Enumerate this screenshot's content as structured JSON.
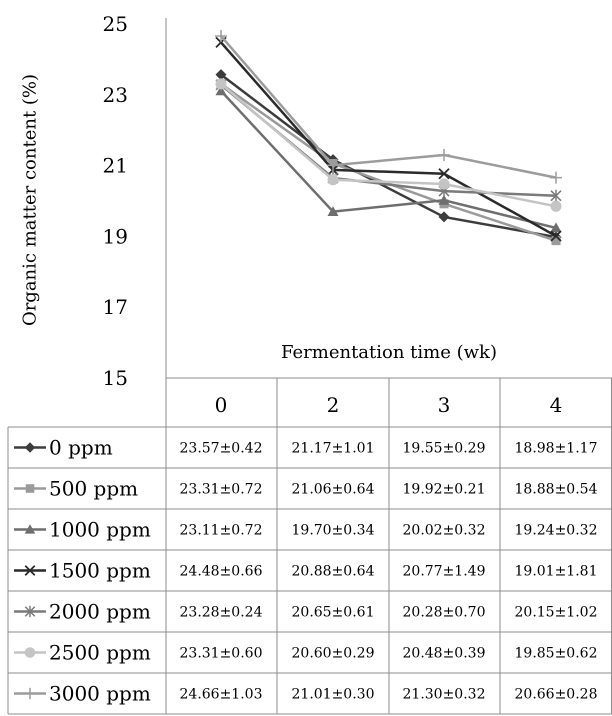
{
  "chart_data": {
    "type": "line",
    "ylabel": "Organic matter content (%)",
    "xlabel": "Fermentation time (wk)",
    "ylim": [
      15,
      25
    ],
    "yticks": [
      "15",
      "17",
      "19",
      "21",
      "23",
      "25"
    ],
    "categories": [
      "0",
      "2",
      "3",
      "4"
    ],
    "series": [
      {
        "name": "0 ppm",
        "marker": "diamond",
        "color": "#3c3c3c",
        "values": [
          23.57,
          21.17,
          19.55,
          18.98
        ],
        "table": [
          "23.57±0.42",
          "21.17±1.01",
          "19.55±0.29",
          "18.98±1.17"
        ]
      },
      {
        "name": "500 ppm",
        "marker": "square",
        "color": "#9a9a9a",
        "values": [
          23.31,
          21.06,
          19.92,
          18.88
        ],
        "table": [
          "23.31±0.72",
          "21.06±0.64",
          "19.92±0.21",
          "18.88±0.54"
        ]
      },
      {
        "name": "1000 ppm",
        "marker": "triangle",
        "color": "#6e6e6e",
        "values": [
          23.11,
          19.7,
          20.02,
          19.24
        ],
        "table": [
          "23.11±0.72",
          "19.70±0.34",
          "20.02±0.32",
          "19.24±0.32"
        ]
      },
      {
        "name": "1500 ppm",
        "marker": "x",
        "color": "#2a2a2a",
        "values": [
          24.48,
          20.88,
          20.77,
          19.01
        ],
        "table": [
          "24.48±0.66",
          "20.88±0.64",
          "20.77±1.49",
          "19.01±1.81"
        ]
      },
      {
        "name": "2000 ppm",
        "marker": "star",
        "color": "#7a7a7a",
        "values": [
          23.28,
          20.65,
          20.28,
          20.15
        ],
        "table": [
          "23.28±0.24",
          "20.65±0.61",
          "20.28±0.70",
          "20.15±1.02"
        ]
      },
      {
        "name": "2500 ppm",
        "marker": "circle",
        "color": "#c4c4c4",
        "values": [
          23.31,
          20.6,
          20.48,
          19.85
        ],
        "table": [
          "23.31±0.60",
          "20.60±0.29",
          "20.48±0.39",
          "19.85±0.62"
        ]
      },
      {
        "name": "3000 ppm",
        "marker": "plus",
        "color": "#9c9c9c",
        "values": [
          24.66,
          21.01,
          21.3,
          20.66
        ],
        "table": [
          "24.66±1.03",
          "21.01±0.30",
          "21.30±0.32",
          "20.66±0.28"
        ]
      }
    ]
  }
}
